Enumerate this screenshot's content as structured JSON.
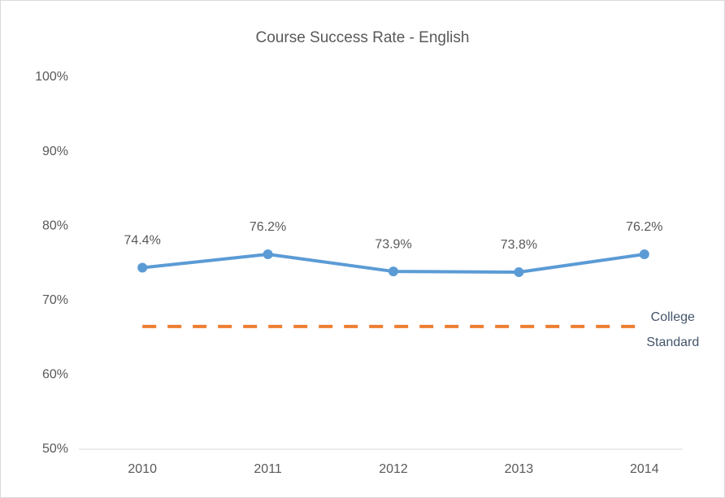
{
  "chart_data": {
    "type": "line",
    "title": "Course Success Rate - English",
    "categories": [
      "2010",
      "2011",
      "2012",
      "2013",
      "2014"
    ],
    "series": [
      {
        "name": "Course Success Rate",
        "color": "#5b9bd5",
        "values": [
          74.4,
          76.2,
          73.9,
          73.8,
          76.2
        ],
        "value_labels": [
          "74.4%",
          "76.2%",
          "73.9%",
          "73.8%",
          "76.2%"
        ]
      },
      {
        "name": "College Standard",
        "color": "#ed7d31",
        "dashed": true,
        "values": [
          66.5,
          66.5,
          66.5,
          66.5,
          66.5
        ]
      }
    ],
    "ylim": [
      50,
      100
    ],
    "yticks": [
      {
        "value": 50,
        "label": "50%"
      },
      {
        "value": 60,
        "label": "60%"
      },
      {
        "value": 70,
        "label": "70%"
      },
      {
        "value": 80,
        "label": "80%"
      },
      {
        "value": 90,
        "label": "90%"
      },
      {
        "value": 100,
        "label": "100%"
      }
    ],
    "grid": false
  }
}
